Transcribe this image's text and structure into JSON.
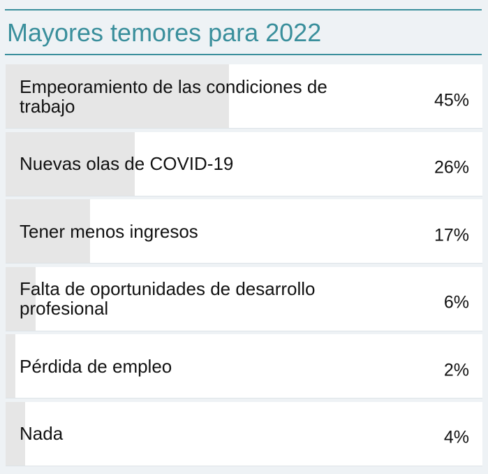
{
  "title": "Mayores temores para 2022",
  "colors": {
    "accent": "#3a8f9c",
    "bar": "#e6e6e6",
    "row_background": "#ffffff",
    "page_background": "#eef2f5"
  },
  "chart_data": {
    "type": "bar",
    "title": "Mayores temores para 2022",
    "categories": [
      "Empeoramiento de las condiciones de trabajo",
      "Nuevas olas de COVID-19",
      "Tener menos ingresos",
      "Falta de oportunidades de desarrollo profesional",
      "Pérdida de empleo",
      "Nada"
    ],
    "values": [
      45,
      26,
      17,
      6,
      2,
      4
    ],
    "value_labels": [
      "45%",
      "26%",
      "17%",
      "6%",
      "2%",
      "4%"
    ],
    "xlim": [
      0,
      96
    ],
    "unit": "%"
  }
}
